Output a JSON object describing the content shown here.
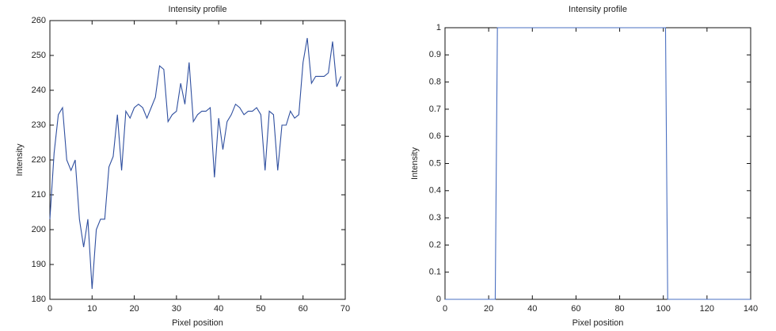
{
  "chart_data": [
    {
      "type": "line",
      "title": "Intensity profile",
      "x_label": "Pixel position",
      "y_label": "Intensity",
      "x": [
        0,
        1,
        2,
        3,
        4,
        5,
        6,
        7,
        8,
        9,
        10,
        11,
        12,
        13,
        14,
        15,
        16,
        17,
        18,
        19,
        20,
        21,
        22,
        23,
        24,
        25,
        26,
        27,
        28,
        29,
        30,
        31,
        32,
        33,
        34,
        35,
        36,
        37,
        38,
        39,
        40,
        41,
        42,
        43,
        44,
        45,
        46,
        47,
        48,
        49,
        50,
        51,
        52,
        53,
        54,
        55,
        56,
        57,
        58,
        59,
        60,
        61,
        62,
        63,
        64,
        65,
        66,
        67,
        68,
        69
      ],
      "series": [
        {
          "color": "#2f4f9f",
          "values": [
            203,
            222,
            233,
            235,
            220,
            217,
            220,
            203,
            195,
            203,
            183,
            200,
            203,
            203,
            218,
            221,
            233,
            217,
            234,
            232,
            235,
            236,
            235,
            232,
            235,
            238,
            247,
            246,
            231,
            233,
            234,
            242,
            236,
            248,
            231,
            233,
            234,
            234,
            235,
            215,
            232,
            223,
            231,
            233,
            236,
            235,
            233,
            234,
            234,
            235,
            233,
            217,
            234,
            233,
            217,
            230,
            230,
            234,
            232,
            233,
            248,
            255,
            242,
            244,
            244,
            244,
            245,
            254,
            241,
            244
          ]
        }
      ],
      "xlim": [
        0,
        70
      ],
      "xticks": [
        0,
        10,
        20,
        30,
        40,
        50,
        60,
        70
      ],
      "ylim": [
        180,
        260
      ],
      "yticks": [
        180,
        190,
        200,
        210,
        220,
        230,
        240,
        250,
        260
      ]
    },
    {
      "type": "line",
      "title": "Intensity profile",
      "x_label": "Pixel position",
      "y_label": "Intensity",
      "x": [
        0,
        23,
        24,
        101,
        102,
        140
      ],
      "series": [
        {
          "color": "#4a6fc0",
          "values": [
            0,
            0,
            1,
            1,
            0,
            0
          ]
        }
      ],
      "xlim": [
        0,
        140
      ],
      "xticks": [
        0,
        20,
        40,
        60,
        80,
        100,
        120,
        140
      ],
      "ylim": [
        0,
        1
      ],
      "yticks": [
        0,
        0.1,
        0.2,
        0.3,
        0.4,
        0.5,
        0.6,
        0.7,
        0.8,
        0.9,
        1
      ]
    }
  ]
}
